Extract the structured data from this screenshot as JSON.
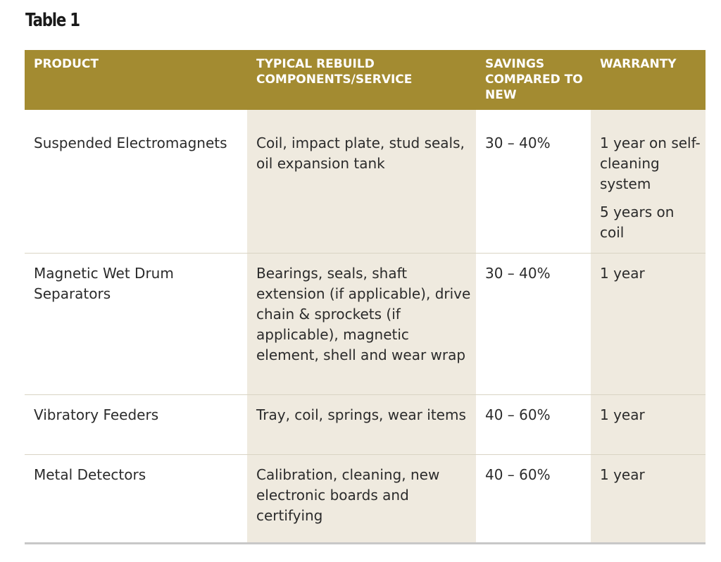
{
  "caption": "Table 1",
  "table": {
    "headers": [
      "PRODUCT",
      "TYPICAL REBUILD COMPONENTS/SERVICE",
      "SAVINGS COMPARED TO NEW",
      "WARRANTY"
    ],
    "rows": [
      {
        "product": "Suspended Electromagnets",
        "components": "Coil, impact plate, stud seals, oil expansion tank",
        "savings": "30 – 40%",
        "warranty": [
          "1 year on self-cleaning system",
          "5 years on coil"
        ]
      },
      {
        "product": "Magnetic Wet Drum Separators",
        "components": "Bearings, seals, shaft extension (if applicable), drive chain & sprockets (if applicable), magnetic element, shell and wear wrap",
        "savings": "30 – 40%",
        "warranty": [
          "1 year"
        ]
      },
      {
        "product": "Vibratory Feeders",
        "components": "Tray, coil, springs, wear items",
        "savings": "40 – 60%",
        "warranty": [
          "1 year"
        ]
      },
      {
        "product": "Metal Detectors",
        "components": "Calibration, cleaning, new electronic boards and certifying",
        "savings": "40 – 60%",
        "warranty": [
          "1 year"
        ]
      }
    ]
  },
  "colors": {
    "header_bg": "#a38b31",
    "header_text": "#ffffff",
    "shaded_column": "#efeadf",
    "body_text": "#2b2b2b"
  }
}
